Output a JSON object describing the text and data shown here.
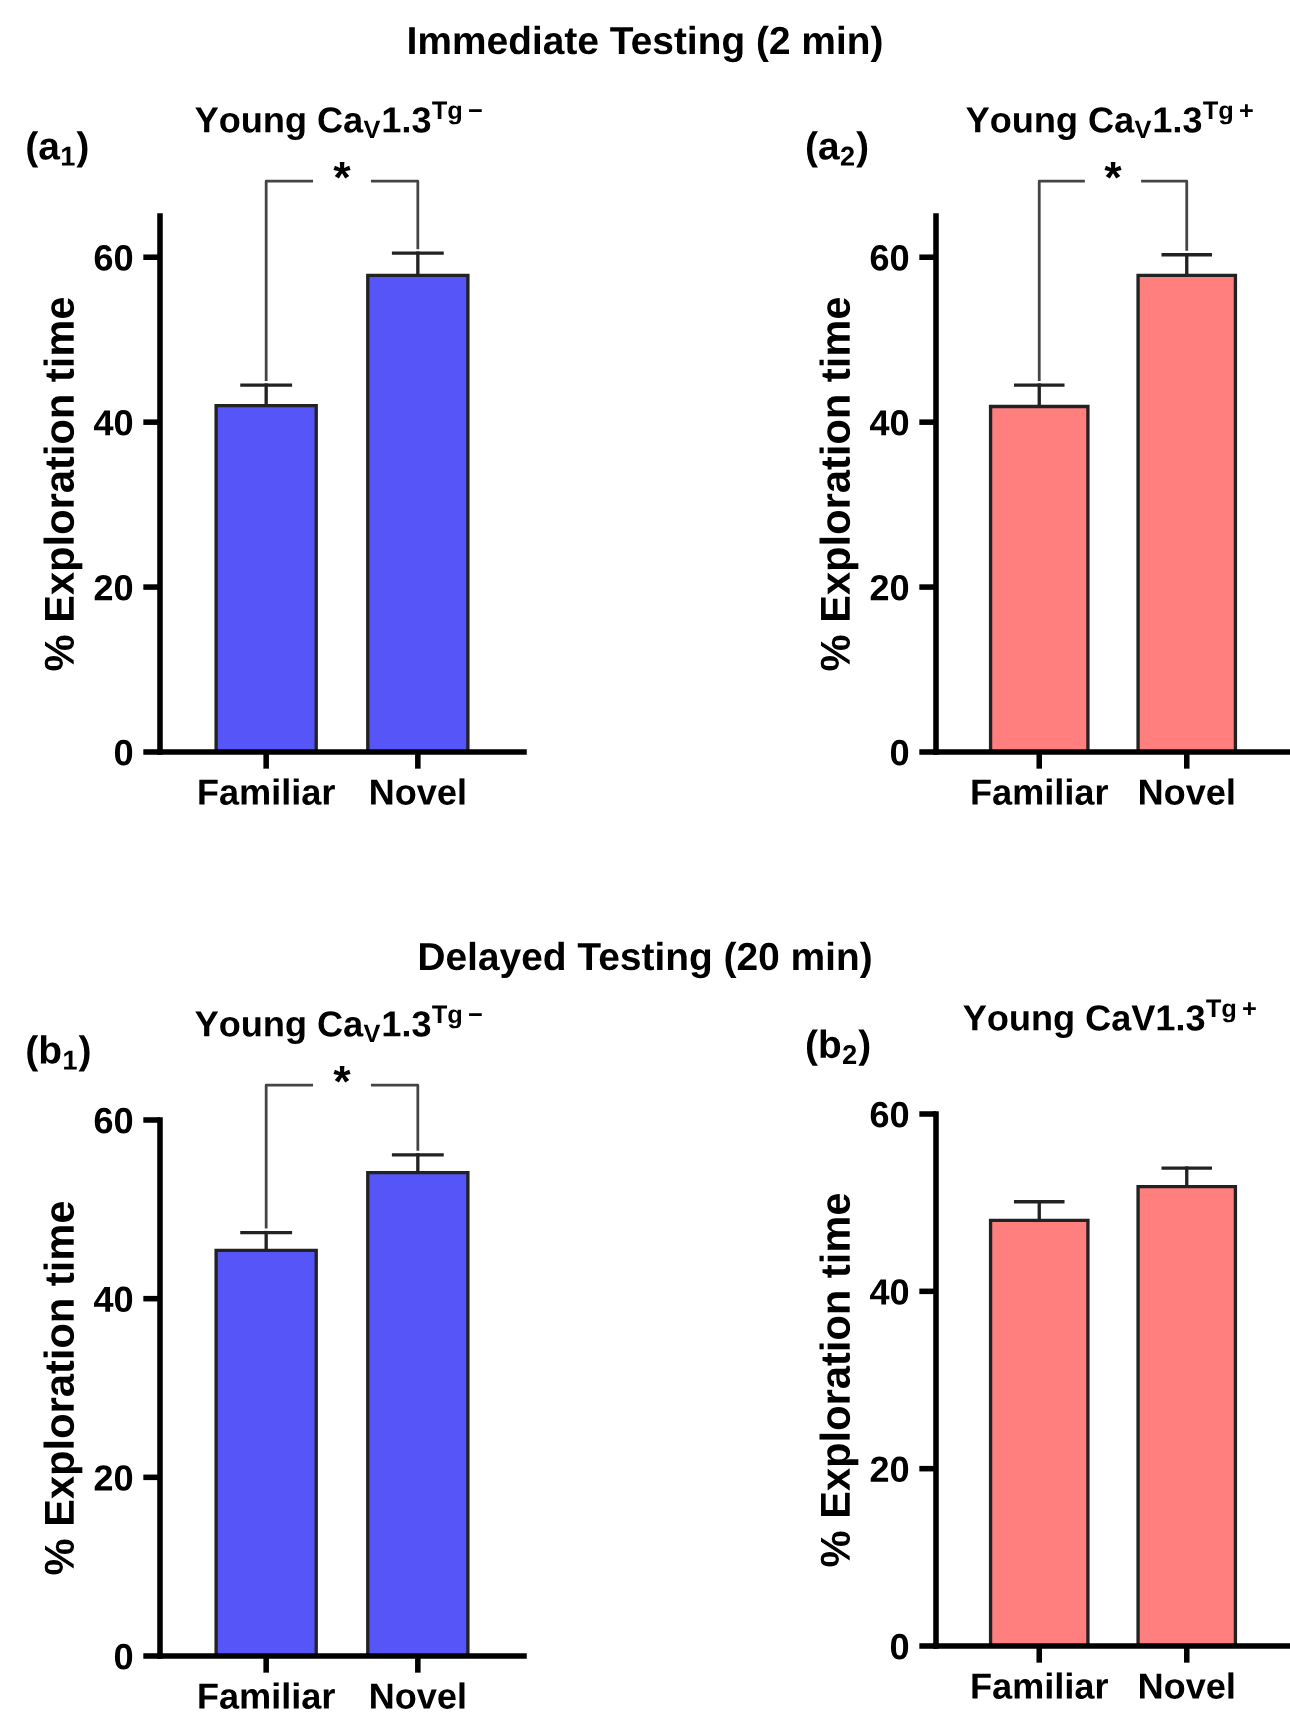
{
  "chart_data": [
    {
      "type": "bar",
      "subtitle": "Immediate Testing (2 min)",
      "title": "Young Ca$_{V}$1.3$^{Tg−}$",
      "annotations": [
        "(a$_{1}$)",
        "*"
      ],
      "ylabel": "% Exploration time",
      "categories": [
        "Familiar",
        "Novel"
      ],
      "values": [
        42,
        57.8
      ],
      "errors": [
        2.5,
        2.7
      ],
      "color": "#5555f8",
      "ylim": [
        0,
        65
      ],
      "yticks": [
        0,
        20,
        40,
        60
      ],
      "grid": false,
      "legend": false
    },
    {
      "type": "bar",
      "title": "Young Ca$_{V}$1.3$^{Tg+}$",
      "annotations": [
        "(a$_{2}$)",
        "*"
      ],
      "ylabel": "% Exploration time",
      "categories": [
        "Familiar",
        "Novel"
      ],
      "values": [
        41.9,
        57.8
      ],
      "errors": [
        2.6,
        2.5
      ],
      "color": "#ff7f7f",
      "ylim": [
        0,
        65
      ],
      "yticks": [
        0,
        20,
        40,
        60
      ],
      "grid": false,
      "legend": false
    },
    {
      "type": "bar",
      "subtitle": "Delayed Testing (20 min)",
      "title": "Young Ca$_{V}$1.3$^{Tg−}$",
      "annotations": [
        "(b$_{1}$)",
        "*"
      ],
      "ylabel": "% Exploration time",
      "categories": [
        "Familiar",
        "Novel"
      ],
      "values": [
        45.4,
        54.1
      ],
      "errors": [
        2.0,
        2.0
      ],
      "color": "#5555f8",
      "ylim": [
        0,
        60
      ],
      "yticks": [
        0,
        20,
        40,
        60
      ],
      "grid": false,
      "legend": false
    },
    {
      "type": "bar",
      "title": "Young CaV1.3$^{Tg+}$",
      "annotations": [
        "(b$_{2}$)"
      ],
      "ylabel": "% Exploration time",
      "categories": [
        "Familiar",
        "Novel"
      ],
      "values": [
        48.0,
        51.8
      ],
      "errors": [
        2.1,
        2.1
      ],
      "color": "#ff7f7f",
      "ylim": [
        0,
        60
      ],
      "yticks": [
        0,
        20,
        40,
        60
      ],
      "grid": false,
      "legend": false
    }
  ]
}
